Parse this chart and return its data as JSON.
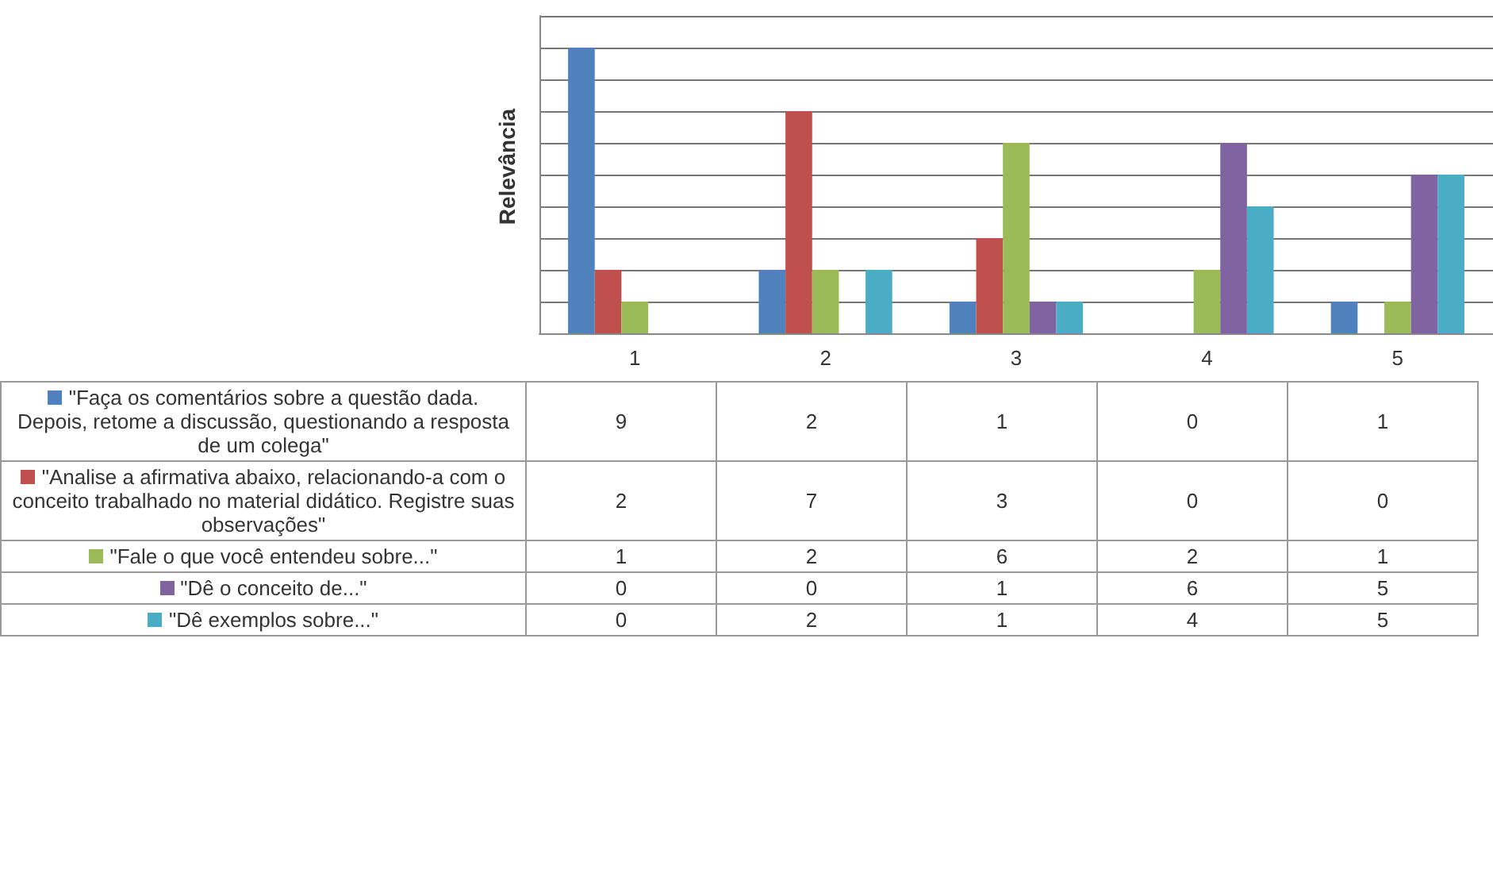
{
  "chart_data": {
    "type": "bar",
    "ylabel": "Relevância",
    "categories": [
      "1",
      "2",
      "3",
      "4",
      "5"
    ],
    "series": [
      {
        "name": "\"Faça os comentários sobre a questão dada. Depois, retome a discussão, questionando a resposta de um colega\"",
        "color": "#4f81bd",
        "values": [
          9,
          2,
          1,
          0,
          1
        ]
      },
      {
        "name": "\"Analise a afirmativa abaixo, relacionando-a com o conceito trabalhado no material didático. Registre suas observações\"",
        "color": "#c0504d",
        "values": [
          2,
          7,
          3,
          0,
          0
        ]
      },
      {
        "name": "\"Fale o que você entendeu sobre...\"",
        "color": "#9bbb59",
        "values": [
          1,
          2,
          6,
          2,
          1
        ]
      },
      {
        "name": "\"Dê o conceito de...\"",
        "color": "#8064a2",
        "values": [
          0,
          0,
          1,
          6,
          5
        ]
      },
      {
        "name": "\"Dê exemplos sobre...\"",
        "color": "#4bacc6",
        "values": [
          0,
          2,
          1,
          4,
          5
        ]
      }
    ],
    "ylim": [
      0,
      10
    ],
    "yticks": [
      {
        "value": 0,
        "label": null
      },
      {
        "value": 1,
        "label": null
      },
      {
        "value": 2,
        "label": null
      },
      {
        "value": 3,
        "label": null
      },
      {
        "value": 4,
        "label": null
      },
      {
        "value": 5,
        "label": null
      },
      {
        "value": 6,
        "label": null
      },
      {
        "value": 7,
        "label": null
      },
      {
        "value": 8,
        "label": null
      },
      {
        "value": 9,
        "label": null
      },
      {
        "value": 10,
        "label": null
      }
    ],
    "grid": "y",
    "legend": "bottom",
    "data_labels": true,
    "tick_labels": "x"
  }
}
